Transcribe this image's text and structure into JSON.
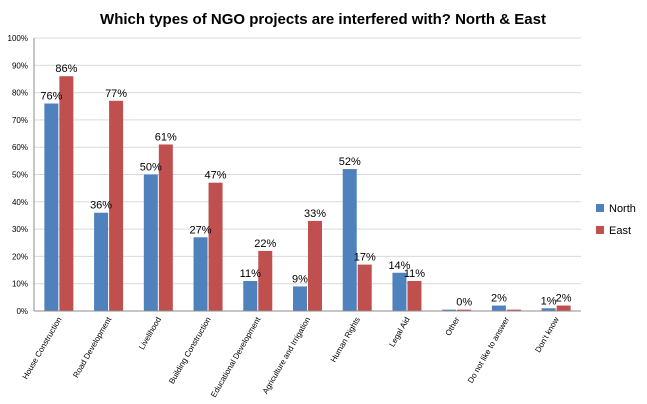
{
  "chart_data": {
    "type": "bar",
    "title": "Which types of NGO projects are interfered with?  North & East",
    "categories": [
      "House Construction",
      "Road Development",
      "Livelihood",
      "Building Construction",
      "Educational Development",
      "Agriculture and Irrigation",
      "Human Rights",
      "Legal Aid",
      "Other",
      "Do not like to answer",
      "Don't know"
    ],
    "series": [
      {
        "name": "North",
        "color": "#4f81bd",
        "values": [
          76,
          36,
          50,
          27,
          11,
          9,
          52,
          14,
          0.5,
          2,
          1
        ],
        "labels": [
          "76%",
          "36%",
          "50%",
          "27%",
          "11%",
          "9%",
          "52%",
          "14%",
          "",
          "2%",
          "1%"
        ]
      },
      {
        "name": "East",
        "color": "#c0504d",
        "values": [
          86,
          77,
          61,
          47,
          22,
          33,
          17,
          11,
          0.5,
          0.5,
          2
        ],
        "labels": [
          "86%",
          "77%",
          "61%",
          "47%",
          "22%",
          "33%",
          "17%",
          "11%",
          "0%",
          "",
          "2%"
        ]
      }
    ],
    "yticks": [
      "0%",
      "10%",
      "20%",
      "30%",
      "40%",
      "50%",
      "60%",
      "70%",
      "80%",
      "90%",
      "100%"
    ],
    "ylim": [
      0,
      100
    ],
    "grid": true,
    "legend": "right"
  }
}
